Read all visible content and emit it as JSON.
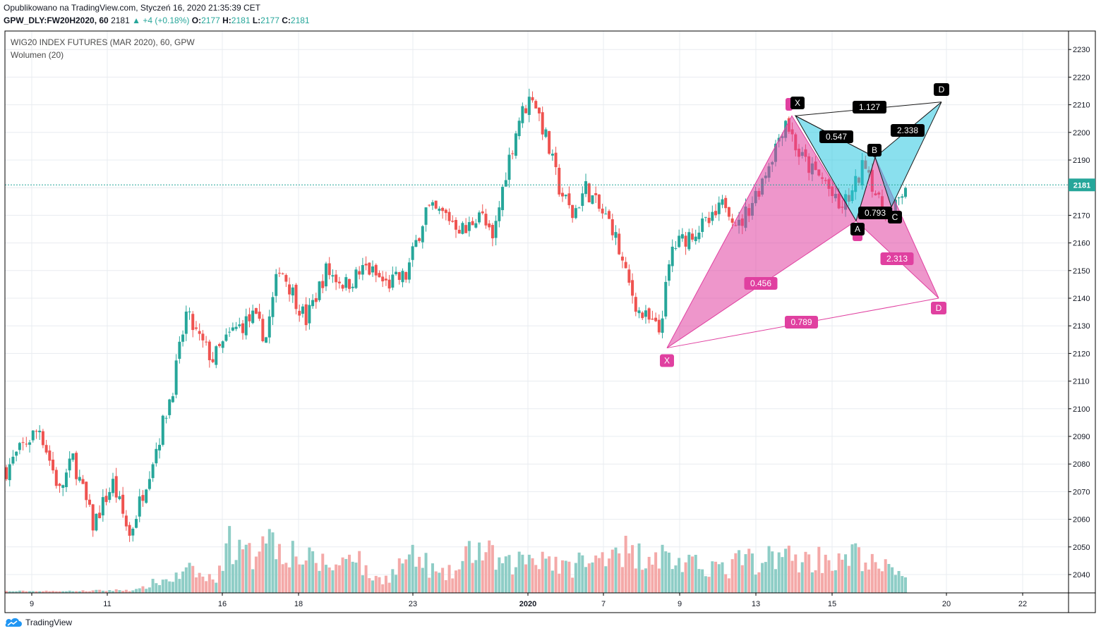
{
  "header": {
    "published": "Opublikowano na TradingView.com, Styczeń 16, 2020 21:35:39 CET",
    "symbol": "GPW_DLY:FW20H2020, 60",
    "last": "2181",
    "change": "▲ +4 (+0.18%)",
    "o_label": "O:",
    "o": "2177",
    "h_label": "H:",
    "h": "2181",
    "l_label": "L:",
    "l": "2177",
    "c_label": "C:",
    "c": "2181"
  },
  "legend": {
    "title": "WIG20 INDEX FUTURES (MAR 2020), 60, GPW",
    "volume": "Wolumen (20)"
  },
  "footer": {
    "brand": "TradingView"
  },
  "colors": {
    "up": "#26a69a",
    "down": "#ef5350",
    "up_volume": "#8ecdc6",
    "down_volume": "#f4a9a8",
    "bullish_pattern": "#e040a0",
    "bearish_pattern": "#29c6e0",
    "last_price": "#26a69a"
  },
  "chart_data": {
    "type": "candlestick",
    "y_axis_ticks": [
      2040,
      2050,
      2060,
      2070,
      2080,
      2090,
      2100,
      2110,
      2120,
      2130,
      2140,
      2150,
      2160,
      2170,
      2180,
      2190,
      2200,
      2210,
      2220,
      2230
    ],
    "x_axis_labels": [
      "9",
      "11",
      "16",
      "18",
      "23",
      "2020",
      "7",
      "9",
      "13",
      "15",
      "20",
      "22"
    ],
    "last_price": 2181,
    "last_price_label": "2181",
    "price_anchors": [
      [
        0,
        2078
      ],
      [
        6,
        2088
      ],
      [
        10,
        2093
      ],
      [
        16,
        2070
      ],
      [
        20,
        2082
      ],
      [
        26,
        2058
      ],
      [
        32,
        2073
      ],
      [
        37,
        2054
      ],
      [
        42,
        2074
      ],
      [
        46,
        2090
      ],
      [
        50,
        2108
      ],
      [
        54,
        2134
      ],
      [
        58,
        2125
      ],
      [
        62,
        2118
      ],
      [
        68,
        2128
      ],
      [
        74,
        2133
      ],
      [
        78,
        2126
      ],
      [
        82,
        2152
      ],
      [
        86,
        2142
      ],
      [
        90,
        2132
      ],
      [
        96,
        2150
      ],
      [
        102,
        2145
      ],
      [
        108,
        2151
      ],
      [
        114,
        2145
      ],
      [
        120,
        2148
      ],
      [
        126,
        2172
      ],
      [
        132,
        2170
      ],
      [
        138,
        2164
      ],
      [
        142,
        2172
      ],
      [
        146,
        2160
      ],
      [
        150,
        2186
      ],
      [
        154,
        2205
      ],
      [
        158,
        2214
      ],
      [
        162,
        2198
      ],
      [
        166,
        2180
      ],
      [
        170,
        2170
      ],
      [
        174,
        2180
      ],
      [
        178,
        2172
      ],
      [
        182,
        2166
      ],
      [
        186,
        2148
      ],
      [
        190,
        2135
      ],
      [
        196,
        2128
      ],
      [
        200,
        2158
      ],
      [
        206,
        2164
      ],
      [
        212,
        2168
      ],
      [
        216,
        2175
      ],
      [
        220,
        2166
      ],
      [
        226,
        2180
      ],
      [
        230,
        2192
      ],
      [
        234,
        2205
      ],
      [
        238,
        2192
      ],
      [
        242,
        2186
      ],
      [
        246,
        2182
      ],
      [
        250,
        2172
      ],
      [
        254,
        2178
      ],
      [
        258,
        2190
      ],
      [
        262,
        2174
      ],
      [
        266,
        2170
      ],
      [
        270,
        2181
      ]
    ],
    "volume_anchors": [
      [
        0,
        1
      ],
      [
        20,
        1
      ],
      [
        40,
        2
      ],
      [
        44,
        6
      ],
      [
        48,
        8
      ],
      [
        52,
        10
      ],
      [
        56,
        14
      ],
      [
        60,
        8
      ],
      [
        64,
        12
      ],
      [
        66,
        36
      ],
      [
        70,
        24
      ],
      [
        74,
        22
      ],
      [
        78,
        48
      ],
      [
        80,
        30
      ],
      [
        84,
        28
      ],
      [
        90,
        20
      ],
      [
        96,
        18
      ],
      [
        100,
        16
      ],
      [
        104,
        30
      ],
      [
        108,
        12
      ],
      [
        112,
        8
      ],
      [
        116,
        12
      ],
      [
        120,
        22
      ],
      [
        126,
        18
      ],
      [
        130,
        10
      ],
      [
        136,
        14
      ],
      [
        140,
        28
      ],
      [
        144,
        24
      ],
      [
        150,
        16
      ],
      [
        156,
        22
      ],
      [
        162,
        24
      ],
      [
        168,
        14
      ],
      [
        172,
        20
      ],
      [
        176,
        16
      ],
      [
        180,
        28
      ],
      [
        184,
        30
      ],
      [
        188,
        22
      ],
      [
        194,
        26
      ],
      [
        200,
        20
      ],
      [
        206,
        16
      ],
      [
        212,
        18
      ],
      [
        216,
        12
      ],
      [
        222,
        24
      ],
      [
        226,
        10
      ],
      [
        230,
        28
      ],
      [
        234,
        22
      ],
      [
        240,
        20
      ],
      [
        246,
        22
      ],
      [
        250,
        18
      ],
      [
        256,
        24
      ],
      [
        262,
        14
      ],
      [
        266,
        16
      ],
      [
        270,
        12
      ]
    ],
    "harmonic_patterns": [
      {
        "kind": "bullish",
        "points": {
          "X": [
            "7 Jan",
            2122
          ],
          "A": [
            "13 Jan",
            2206
          ],
          "B": [
            "15 Jan",
            2168
          ],
          "C": [
            "16 Jan",
            2191
          ],
          "D": [
            "20 Jan",
            2140
          ]
        },
        "labels": {
          "X": "X",
          "D": "D"
        },
        "ratios": {
          "xb": "0.789",
          "ab": "0.456",
          "bd": "2.313",
          "xd": "0.793"
        }
      },
      {
        "kind": "bearish",
        "points": {
          "X": [
            "13 Jan",
            2206
          ],
          "A": [
            "15 Jan",
            2168
          ],
          "B": [
            "16 Jan",
            2191
          ],
          "C": [
            "16 Jan",
            2173
          ],
          "D": [
            "20 Jan",
            2211
          ]
        },
        "labels": {
          "X": "X",
          "A": "A",
          "B": "B",
          "C": "C",
          "D": "D"
        },
        "ratios": {
          "xd": "1.127",
          "xb": "0.547",
          "bd": "2.338"
        }
      }
    ]
  }
}
